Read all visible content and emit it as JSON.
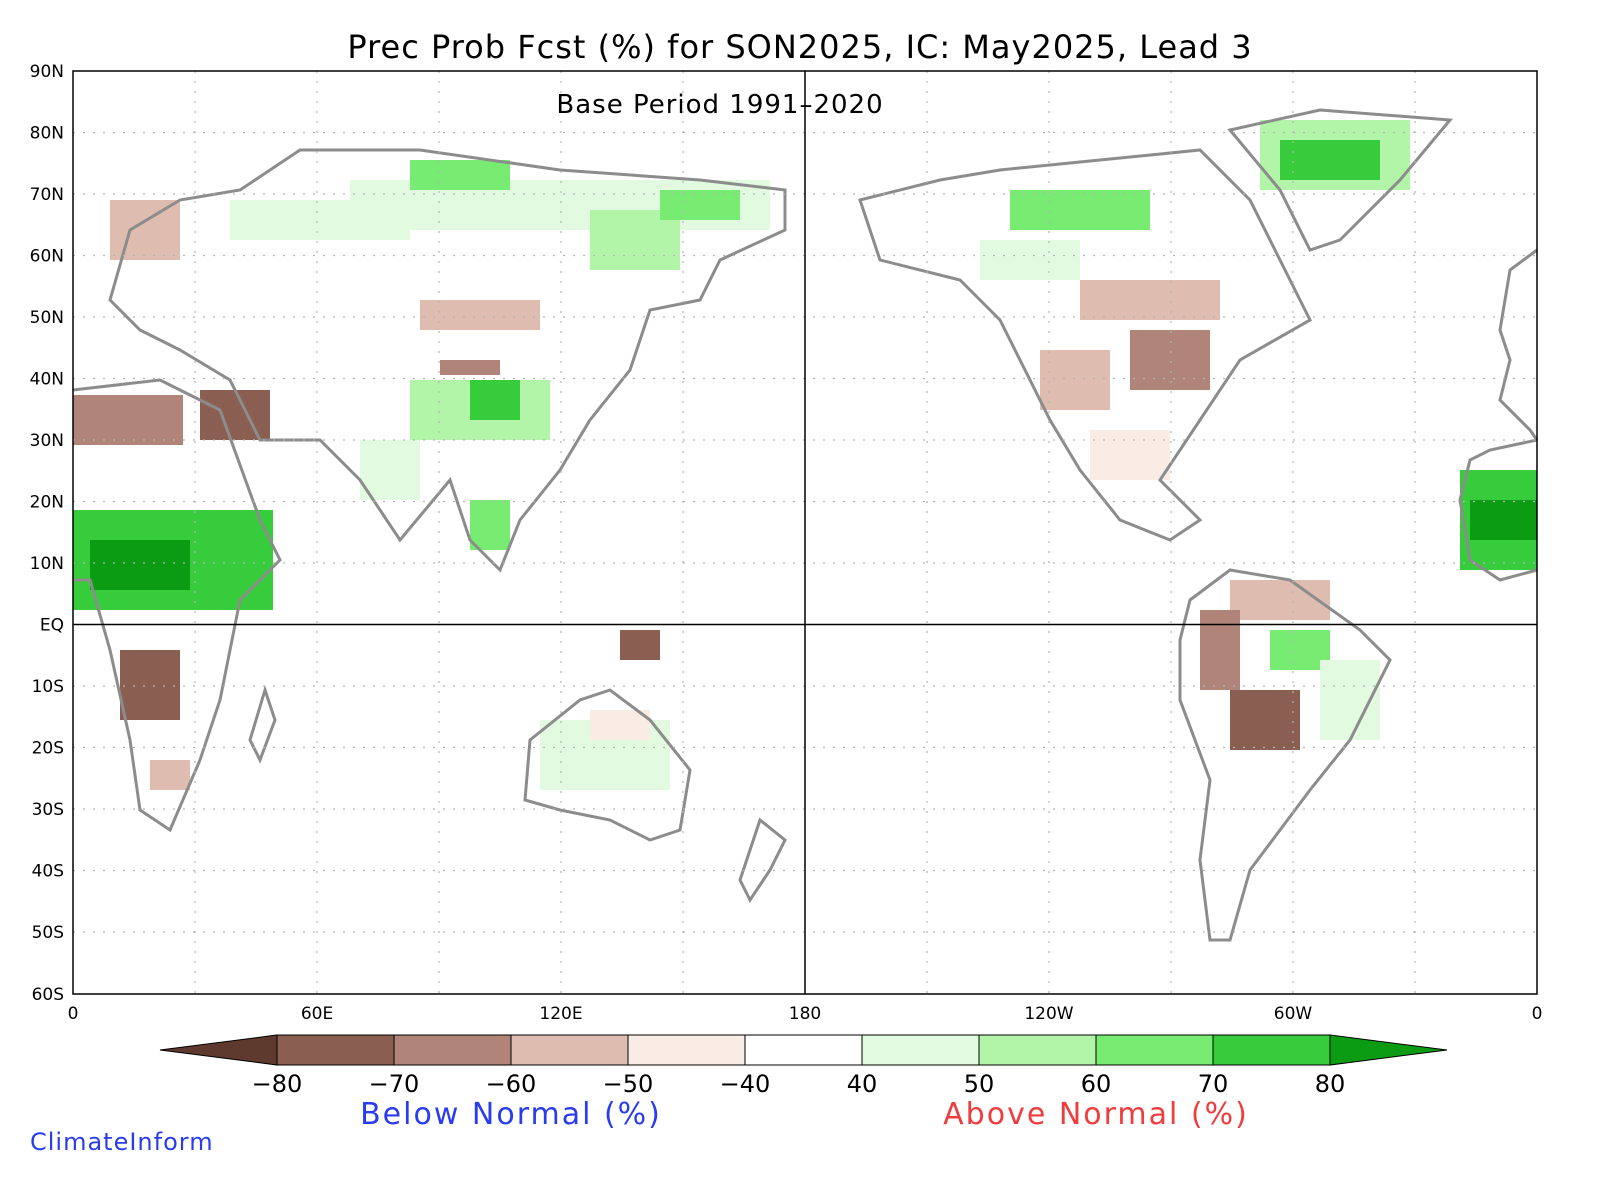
{
  "title": "Prec Prob Fcst (%) for SON2025, IC: May2025, Lead 3",
  "subtitle": "Base Period 1991–2020",
  "lat_labels": [
    "90N",
    "80N",
    "70N",
    "60N",
    "50N",
    "40N",
    "30N",
    "20N",
    "10N",
    "EQ",
    "10S",
    "20S",
    "30S",
    "40S",
    "50S",
    "60S"
  ],
  "lon_labels": [
    "0",
    "60E",
    "120E",
    "180",
    "120W",
    "60W",
    "0"
  ],
  "colorbar": {
    "ticks": [
      "−80",
      "−70",
      "−60",
      "−50",
      "−40",
      "40",
      "50",
      "60",
      "70",
      "80"
    ],
    "colors": [
      "#5e3a2e",
      "#8b5e52",
      "#b08478",
      "#dfbcb0",
      "#f8ece4",
      "#ffffff",
      "#e2fbe0",
      "#b2f5a8",
      "#78ec72",
      "#36cc3c",
      "#0c9c14"
    ],
    "below_label": "Below Normal (%)",
    "below_color": "#2a3cf0",
    "above_label": "Above Normal (%)",
    "above_color": "#f03c3c"
  },
  "brand": {
    "text": "ClimateInform",
    "color": "#2a3cf0"
  },
  "colors": {
    "coastline": "#8c8c8c",
    "grid": "#b4b4b4",
    "frame": "#000000"
  }
}
